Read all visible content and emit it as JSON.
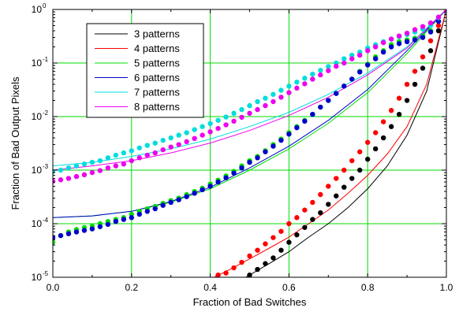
{
  "chart_data": {
    "type": "line",
    "xlabel": "Fraction of Bad Switches",
    "ylabel": "Fraction of Bad Output Pixels",
    "xlim": [
      0,
      1
    ],
    "ylim": [
      1e-05,
      1
    ],
    "yscale": "log",
    "grid": true,
    "grid_color": "#00dd00",
    "legend_position": "top-left",
    "x_ticks": [
      {
        "value": 0,
        "label": "0.0"
      },
      {
        "value": 0.2,
        "label": "0.2"
      },
      {
        "value": 0.4,
        "label": "0.4"
      },
      {
        "value": 0.6,
        "label": "0.6"
      },
      {
        "value": 0.8,
        "label": "0.8"
      },
      {
        "value": 1.0,
        "label": "1.0"
      }
    ],
    "y_ticks": [
      {
        "value": 1e-05,
        "base": "10",
        "exp": "-5"
      },
      {
        "value": 0.0001,
        "base": "10",
        "exp": "-4"
      },
      {
        "value": 0.001,
        "base": "10",
        "exp": "-3"
      },
      {
        "value": 0.01,
        "base": "10",
        "exp": "-2"
      },
      {
        "value": 0.1,
        "base": "10",
        "exp": "-1"
      },
      {
        "value": 1,
        "base": "10",
        "exp": "0"
      }
    ],
    "series": [
      {
        "name": "3 patterns",
        "color": "#000000",
        "line": {
          "x": [
            0.49,
            0.55,
            0.6,
            0.65,
            0.7,
            0.75,
            0.8,
            0.85,
            0.9,
            0.95,
            1.0
          ],
          "y": [
            1e-05,
            1.8e-05,
            3e-05,
            5.6e-05,
            0.0001,
            0.0002,
            0.00045,
            0.0012,
            0.0045,
            0.03,
            1.0
          ]
        },
        "points": {
          "x": [
            0.5,
            0.52,
            0.54,
            0.56,
            0.58,
            0.6,
            0.62,
            0.64,
            0.66,
            0.68,
            0.7,
            0.72,
            0.74,
            0.76,
            0.78,
            0.8,
            0.82,
            0.84,
            0.86,
            0.88,
            0.9,
            0.92,
            0.94,
            0.96,
            0.98,
            1.0
          ],
          "y": [
            1.1e-05,
            1.4e-05,
            1.8e-05,
            2.3e-05,
            3.2e-05,
            4.5e-05,
            6.2e-05,
            8.5e-05,
            0.00012,
            0.00016,
            0.00023,
            0.00033,
            0.00048,
            0.0007,
            0.001,
            0.0016,
            0.0025,
            0.004,
            0.0065,
            0.011,
            0.02,
            0.04,
            0.08,
            0.17,
            0.4,
            0.9
          ]
        }
      },
      {
        "name": "4 patterns",
        "color": "#ff0000",
        "line": {
          "x": [
            0.41,
            0.45,
            0.5,
            0.55,
            0.6,
            0.65,
            0.7,
            0.75,
            0.8,
            0.85,
            0.9,
            0.95,
            1.0
          ],
          "y": [
            1e-05,
            1.4e-05,
            2.2e-05,
            3.5e-05,
            5.6e-05,
            0.0001,
            0.00018,
            0.00037,
            0.0008,
            0.002,
            0.0065,
            0.04,
            1.0
          ]
        },
        "points": {
          "x": [
            0.42,
            0.44,
            0.46,
            0.48,
            0.5,
            0.52,
            0.54,
            0.56,
            0.58,
            0.6,
            0.62,
            0.64,
            0.66,
            0.68,
            0.7,
            0.72,
            0.74,
            0.76,
            0.78,
            0.8,
            0.82,
            0.84,
            0.86,
            0.88,
            0.9,
            0.92,
            0.94,
            0.96,
            0.98,
            1.0
          ],
          "y": [
            1.1e-05,
            1.2e-05,
            1.5e-05,
            1.9e-05,
            2.5e-05,
            3.2e-05,
            4.2e-05,
            5.5e-05,
            7.2e-05,
            0.0001,
            0.00013,
            0.00018,
            0.00025,
            0.00035,
            0.0005,
            0.0007,
            0.001,
            0.0015,
            0.0022,
            0.0033,
            0.005,
            0.008,
            0.013,
            0.022,
            0.04,
            0.07,
            0.13,
            0.26,
            0.5,
            0.9
          ]
        }
      },
      {
        "name": "5 patterns",
        "color": "#00dd00",
        "line": {
          "x": [
            0,
            0.1,
            0.2,
            0.3,
            0.4,
            0.5,
            0.6,
            0.7,
            0.8,
            0.9,
            1.0
          ],
          "y": [
            0.00013,
            0.00014,
            0.00017,
            0.00025,
            0.00045,
            0.001,
            0.0025,
            0.0075,
            0.028,
            0.15,
            1.0
          ]
        },
        "points": {
          "x": [
            0,
            0.02,
            0.04,
            0.06,
            0.08,
            0.1,
            0.12,
            0.14,
            0.16,
            0.18,
            0.2,
            0.22,
            0.24,
            0.26,
            0.28,
            0.3,
            0.32,
            0.34,
            0.36,
            0.38,
            0.4,
            0.42,
            0.44,
            0.46,
            0.48,
            0.5,
            0.52,
            0.54,
            0.56,
            0.58,
            0.6,
            0.62,
            0.64,
            0.66,
            0.68,
            0.7,
            0.72,
            0.74,
            0.76,
            0.78,
            0.8,
            0.82,
            0.84,
            0.86,
            0.88,
            0.9,
            0.92,
            0.94,
            0.96,
            0.98,
            1.0
          ],
          "y": [
            4.5e-05,
            6e-05,
            7e-05,
            7.8e-05,
            8.5e-05,
            9e-05,
            0.0001,
            0.00011,
            0.00012,
            0.00013,
            0.00015,
            0.00017,
            0.00019,
            0.00021,
            0.00024,
            0.00027,
            0.0003,
            0.00035,
            0.0004,
            0.00046,
            0.00055,
            0.00065,
            0.00078,
            0.00095,
            0.0012,
            0.0015,
            0.0018,
            0.0023,
            0.003,
            0.0038,
            0.005,
            0.0065,
            0.0085,
            0.011,
            0.015,
            0.02,
            0.027,
            0.037,
            0.05,
            0.07,
            0.095,
            0.13,
            0.17,
            0.22,
            0.25,
            0.27,
            0.29,
            0.32,
            0.4,
            0.6,
            0.9
          ]
        }
      },
      {
        "name": "6 patterns",
        "color": "#0000cc",
        "line": {
          "x": [
            0,
            0.1,
            0.2,
            0.3,
            0.4,
            0.5,
            0.6,
            0.7,
            0.8,
            0.9,
            1.0
          ],
          "y": [
            0.00013,
            0.00014,
            0.00017,
            0.00026,
            0.00048,
            0.0011,
            0.0028,
            0.0085,
            0.032,
            0.17,
            1.0
          ]
        },
        "points": {
          "x": [
            0,
            0.02,
            0.04,
            0.06,
            0.08,
            0.1,
            0.12,
            0.14,
            0.16,
            0.18,
            0.2,
            0.22,
            0.24,
            0.26,
            0.28,
            0.3,
            0.32,
            0.34,
            0.36,
            0.38,
            0.4,
            0.42,
            0.44,
            0.46,
            0.48,
            0.5,
            0.52,
            0.54,
            0.56,
            0.58,
            0.6,
            0.62,
            0.64,
            0.66,
            0.68,
            0.7,
            0.72,
            0.74,
            0.76,
            0.78,
            0.8,
            0.82,
            0.84,
            0.86,
            0.88,
            0.9,
            0.92,
            0.94,
            0.96,
            0.98,
            1.0
          ],
          "y": [
            5.5e-05,
            6e-05,
            6.5e-05,
            7e-05,
            7.5e-05,
            8e-05,
            8.8e-05,
            9.7e-05,
            0.00011,
            0.00012,
            0.00013,
            0.00015,
            0.00017,
            0.00019,
            0.00022,
            0.00025,
            0.00028,
            0.00032,
            0.00037,
            0.00043,
            0.0005,
            0.0006,
            0.00072,
            0.00088,
            0.0011,
            0.0014,
            0.0017,
            0.0022,
            0.0028,
            0.0036,
            0.0047,
            0.0062,
            0.0082,
            0.011,
            0.015,
            0.02,
            0.027,
            0.037,
            0.05,
            0.068,
            0.092,
            0.12,
            0.16,
            0.2,
            0.23,
            0.25,
            0.27,
            0.3,
            0.38,
            0.6,
            0.9
          ]
        }
      },
      {
        "name": "7 patterns",
        "color": "#00dddd",
        "line": {
          "x": [
            0,
            0.1,
            0.2,
            0.3,
            0.4,
            0.5,
            0.6,
            0.7,
            0.8,
            0.9,
            1.0
          ],
          "y": [
            0.0012,
            0.0014,
            0.0018,
            0.0025,
            0.0038,
            0.0065,
            0.012,
            0.026,
            0.065,
            0.2,
            1.0
          ]
        },
        "points": {
          "x": [
            0,
            0.02,
            0.04,
            0.06,
            0.08,
            0.1,
            0.12,
            0.14,
            0.16,
            0.18,
            0.2,
            0.22,
            0.24,
            0.26,
            0.28,
            0.3,
            0.32,
            0.34,
            0.36,
            0.38,
            0.4,
            0.42,
            0.44,
            0.46,
            0.48,
            0.5,
            0.52,
            0.54,
            0.56,
            0.58,
            0.6,
            0.62,
            0.64,
            0.66,
            0.68,
            0.7,
            0.72,
            0.74,
            0.76,
            0.78,
            0.8,
            0.82,
            0.84,
            0.86,
            0.88,
            0.9,
            0.92,
            0.94,
            0.96,
            0.98,
            1.0
          ],
          "y": [
            0.00095,
            0.001,
            0.0011,
            0.0012,
            0.0013,
            0.0014,
            0.0015,
            0.0017,
            0.0019,
            0.0021,
            0.0023,
            0.0026,
            0.0029,
            0.0032,
            0.0036,
            0.004,
            0.0045,
            0.005,
            0.0057,
            0.0065,
            0.0074,
            0.0085,
            0.0098,
            0.0115,
            0.0135,
            0.016,
            0.019,
            0.022,
            0.026,
            0.031,
            0.037,
            0.044,
            0.052,
            0.062,
            0.073,
            0.086,
            0.1,
            0.12,
            0.14,
            0.16,
            0.19,
            0.22,
            0.25,
            0.28,
            0.31,
            0.34,
            0.38,
            0.43,
            0.5,
            0.7,
            0.9
          ]
        }
      },
      {
        "name": "8 patterns",
        "color": "#ee00ee",
        "line": {
          "x": [
            0,
            0.1,
            0.2,
            0.3,
            0.4,
            0.5,
            0.6,
            0.7,
            0.8,
            0.9,
            1.0
          ],
          "y": [
            0.001,
            0.0012,
            0.0015,
            0.0021,
            0.0032,
            0.0055,
            0.0105,
            0.023,
            0.06,
            0.19,
            1.0
          ]
        },
        "points": {
          "x": [
            0,
            0.02,
            0.04,
            0.06,
            0.08,
            0.1,
            0.12,
            0.14,
            0.16,
            0.18,
            0.2,
            0.22,
            0.24,
            0.26,
            0.28,
            0.3,
            0.32,
            0.34,
            0.36,
            0.38,
            0.4,
            0.42,
            0.44,
            0.46,
            0.48,
            0.5,
            0.52,
            0.54,
            0.56,
            0.58,
            0.6,
            0.62,
            0.64,
            0.66,
            0.68,
            0.7,
            0.72,
            0.74,
            0.76,
            0.78,
            0.8,
            0.82,
            0.84,
            0.86,
            0.88,
            0.9,
            0.92,
            0.94,
            0.96,
            0.98,
            1.0
          ],
          "y": [
            0.00062,
            0.00066,
            0.0007,
            0.00076,
            0.00082,
            0.0009,
            0.00098,
            0.0011,
            0.0012,
            0.0013,
            0.0015,
            0.0017,
            0.0019,
            0.0021,
            0.0024,
            0.0027,
            0.003,
            0.0034,
            0.0039,
            0.0045,
            0.0052,
            0.006,
            0.007,
            0.0082,
            0.0097,
            0.0115,
            0.0135,
            0.016,
            0.019,
            0.023,
            0.028,
            0.034,
            0.041,
            0.05,
            0.06,
            0.072,
            0.087,
            0.1,
            0.12,
            0.14,
            0.17,
            0.2,
            0.24,
            0.28,
            0.32,
            0.36,
            0.42,
            0.48,
            0.56,
            0.72,
            0.92
          ]
        }
      }
    ]
  }
}
